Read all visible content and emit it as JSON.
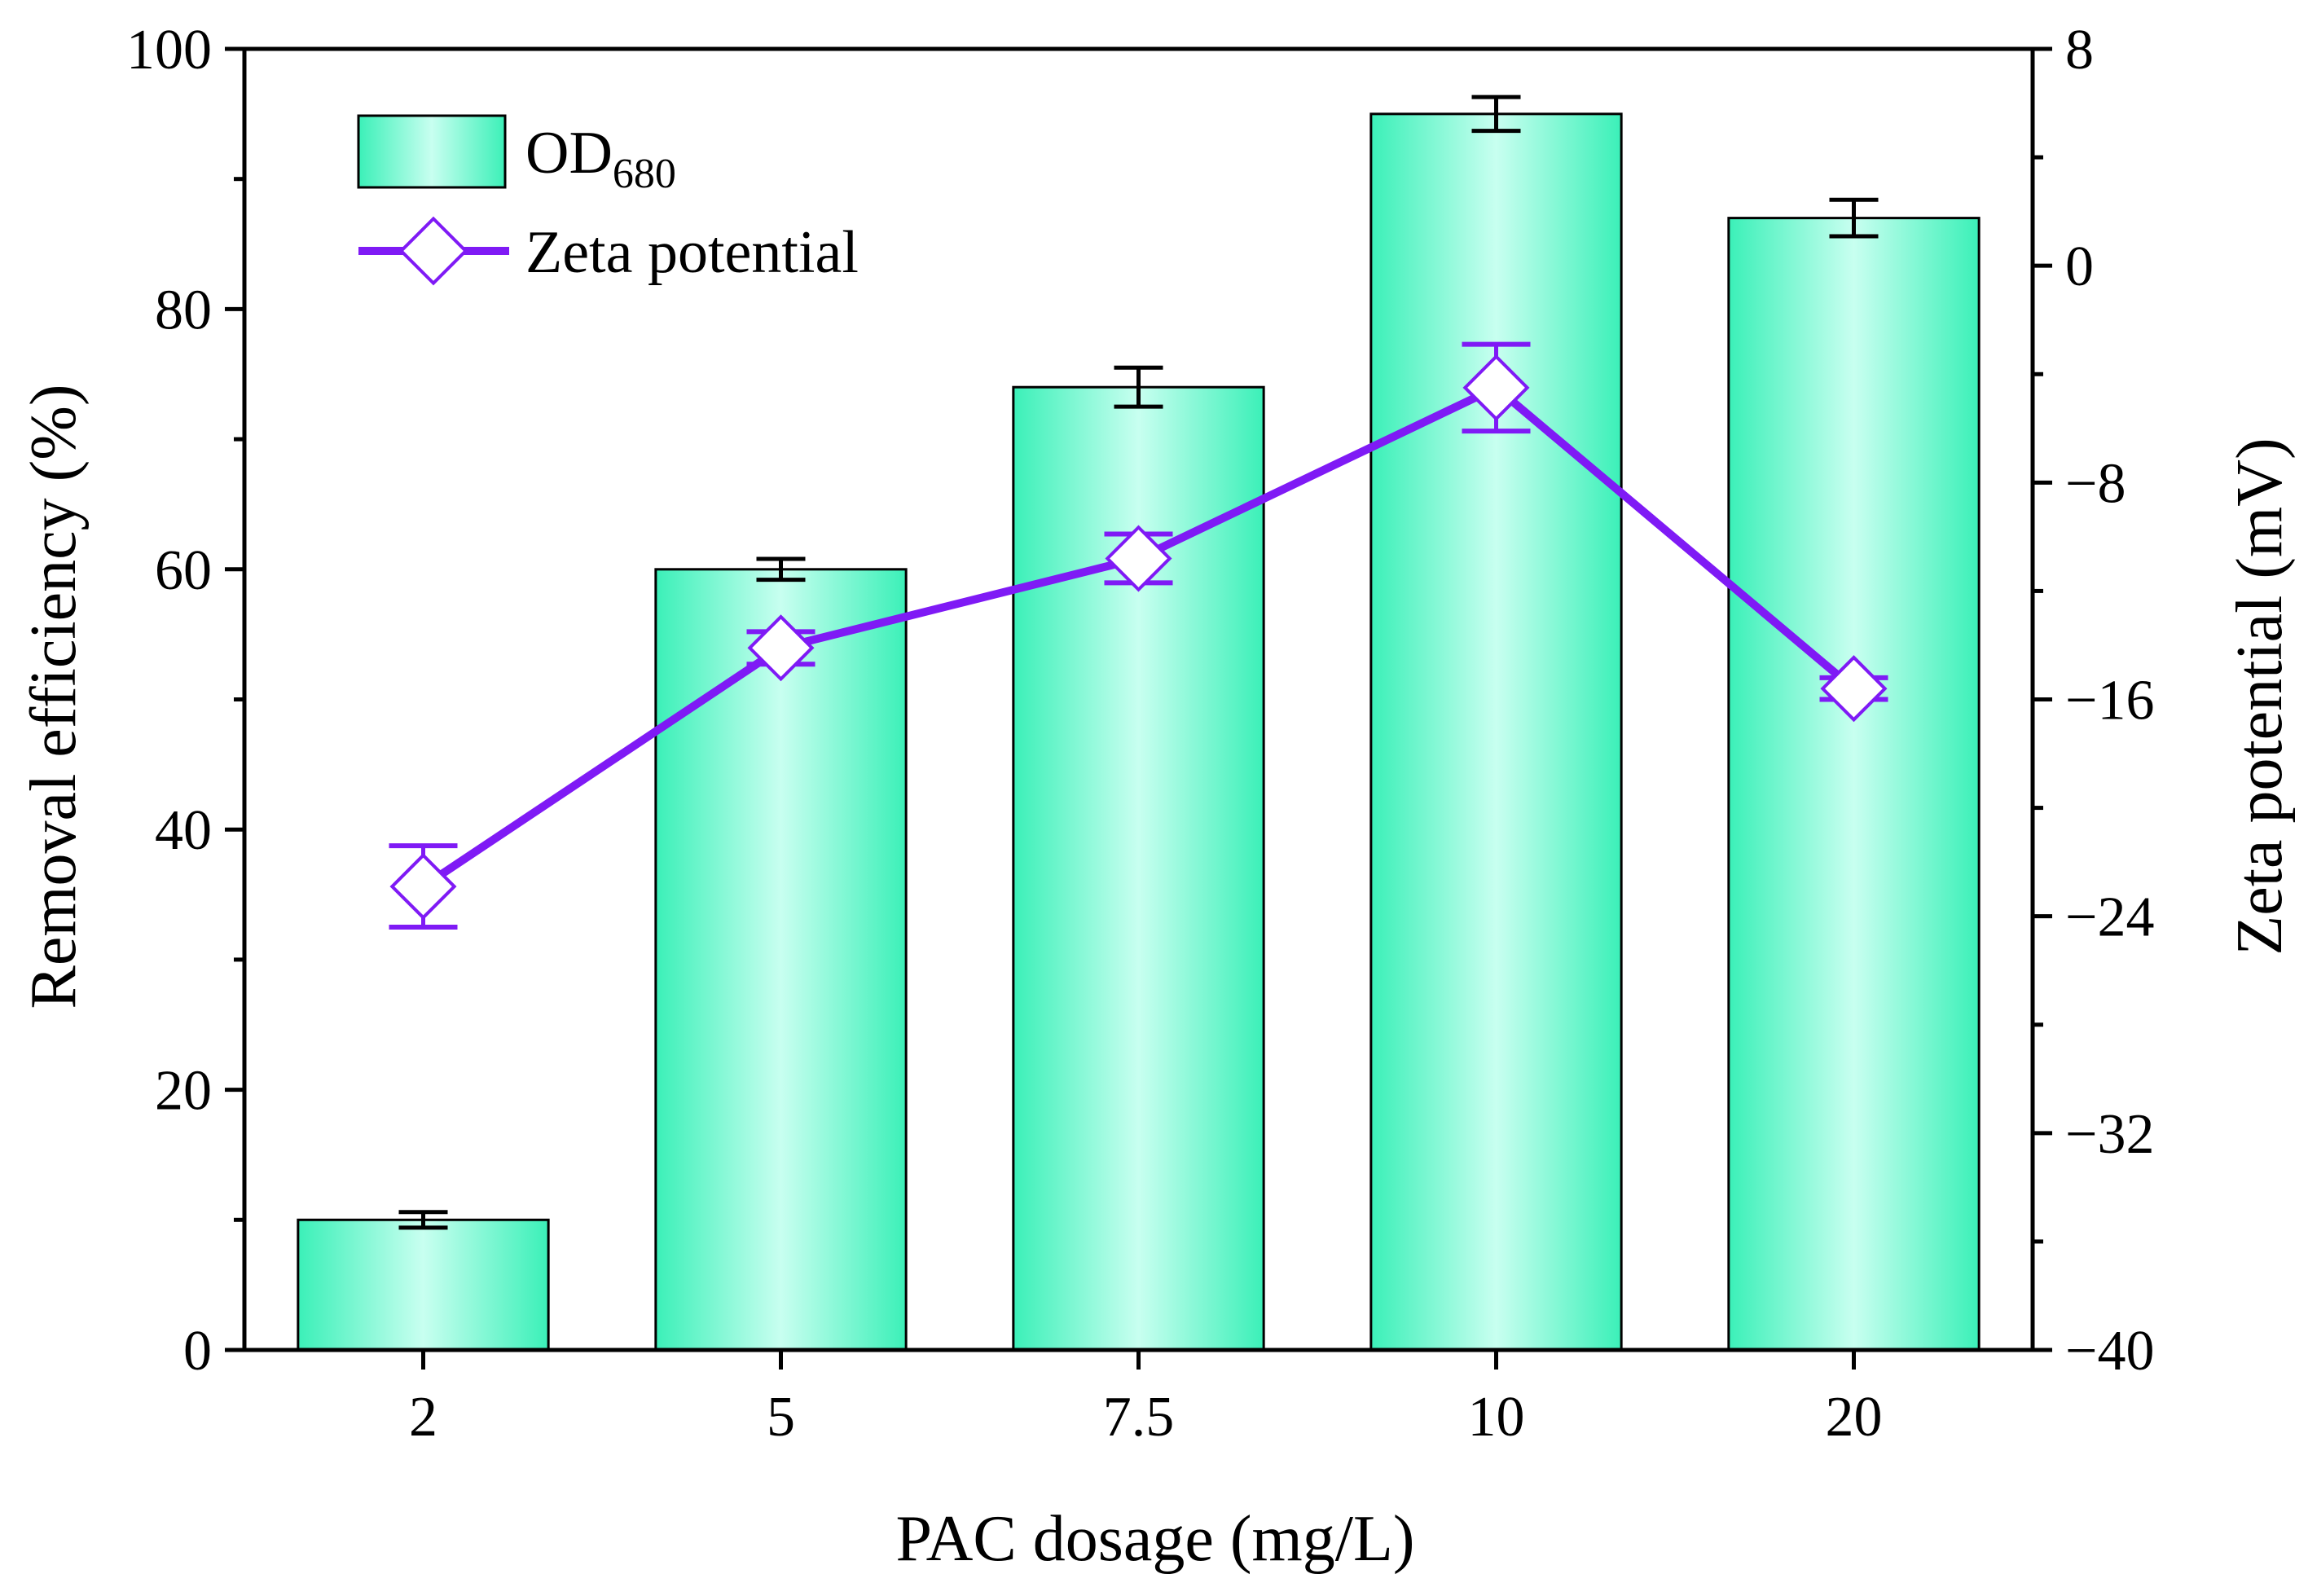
{
  "chart_data": {
    "type": "bar",
    "xlabel": "PAC dosage (mg/L)",
    "ylabel": "Removal efficiency (%)",
    "y2label": "Zeta potential (mV)",
    "categories": [
      "2",
      "5",
      "7.5",
      "10",
      "20"
    ],
    "ylim": [
      0,
      100
    ],
    "yticks": [
      "0",
      "20",
      "40",
      "60",
      "80",
      "100"
    ],
    "y2lim": [
      -40,
      8
    ],
    "y2ticks": [
      "8",
      "0",
      "−8",
      "−16",
      "−24",
      "−32",
      "−40"
    ],
    "y2tick_values": [
      8,
      0,
      -8,
      -16,
      -24,
      -32,
      -40
    ],
    "grid": false,
    "legend_position": "top-left",
    "series": [
      {
        "name": "OD",
        "name_sub": "680",
        "kind": "bar",
        "axis": "left",
        "values": [
          10,
          60,
          74,
          95,
          87
        ],
        "errors": [
          0.6,
          0.8,
          1.5,
          1.3,
          1.4
        ],
        "color": "#3BF0B8"
      },
      {
        "name": "Zeta potential",
        "kind": "line",
        "axis": "right",
        "values": [
          -22.9,
          -14.1,
          -10.8,
          -4.5,
          -15.6
        ],
        "errors": [
          1.5,
          0.6,
          0.9,
          1.6,
          0.4
        ],
        "color": "#7F1AF5"
      }
    ]
  }
}
